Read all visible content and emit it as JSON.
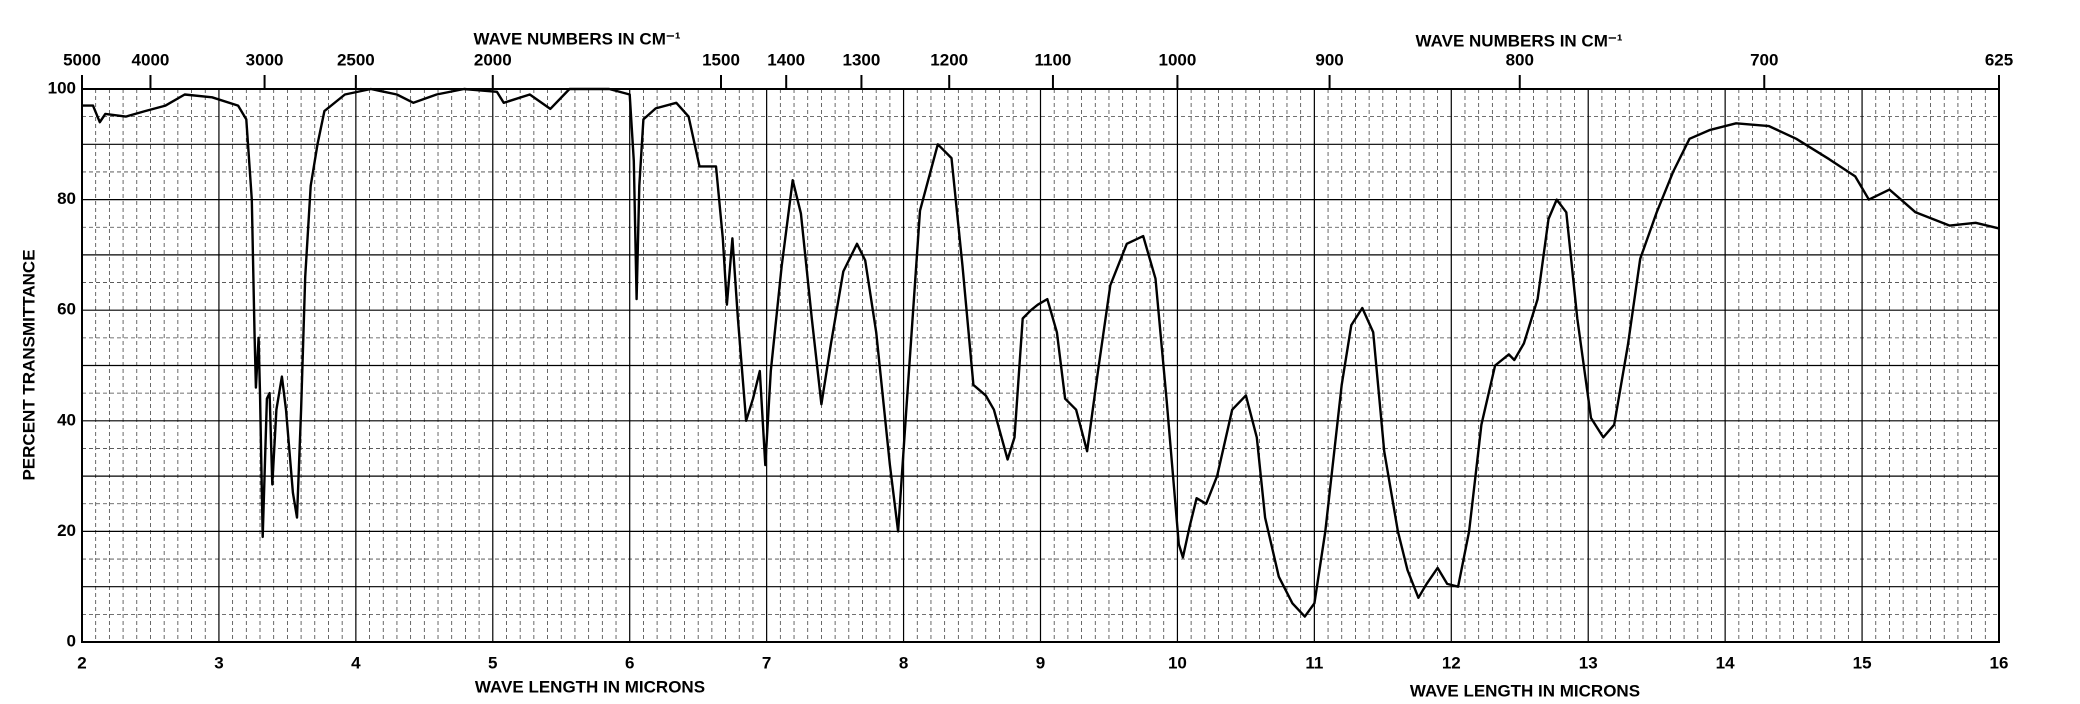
{
  "chart_data": {
    "type": "line",
    "x_labels": [
      "WAVE LENGTH IN MICRONS",
      "WAVE LENGTH IN MICRONS"
    ],
    "x2_labels": [
      "WAVE NUMBERS IN CM⁻¹",
      "WAVE NUMBERS IN CM⁻¹"
    ],
    "y_label": "PERCENT TRANSMITTANCE",
    "color": "#000000",
    "grid": true,
    "xlim": [
      2,
      16
    ],
    "xticks": [
      2,
      3,
      4,
      5,
      6,
      7,
      8,
      9,
      10,
      11,
      12,
      13,
      14,
      15,
      16
    ],
    "x2ticks": [
      5000,
      4000,
      3000,
      2500,
      2000,
      1500,
      1400,
      1300,
      1200,
      1100,
      1000,
      900,
      800,
      700,
      625
    ],
    "ylim": [
      0,
      100
    ],
    "yticks": [
      0,
      20,
      40,
      60,
      80,
      100
    ],
    "x": [
      2.0,
      2.08,
      2.13,
      2.17,
      2.32,
      2.46,
      2.61,
      2.75,
      2.95,
      3.14,
      3.2,
      3.24,
      3.26,
      3.27,
      3.29,
      3.3,
      3.32,
      3.35,
      3.37,
      3.39,
      3.42,
      3.46,
      3.49,
      3.54,
      3.57,
      3.6,
      3.63,
      3.67,
      3.72,
      3.77,
      3.92,
      4.11,
      4.3,
      4.42,
      4.59,
      4.79,
      5.03,
      5.08,
      5.27,
      5.42,
      5.56,
      5.85,
      6.0,
      6.03,
      6.05,
      6.07,
      6.1,
      6.19,
      6.34,
      6.43,
      6.51,
      6.63,
      6.68,
      6.71,
      6.75,
      6.79,
      6.85,
      6.9,
      6.95,
      6.99,
      7.03,
      7.11,
      7.19,
      7.25,
      7.33,
      7.4,
      7.47,
      7.56,
      7.66,
      7.72,
      7.8,
      7.9,
      7.96,
      8.02,
      8.12,
      8.25,
      8.35,
      8.43,
      8.51,
      8.6,
      8.66,
      8.76,
      8.81,
      8.87,
      8.93,
      8.98,
      9.05,
      9.12,
      9.18,
      9.26,
      9.34,
      9.42,
      9.51,
      9.63,
      9.75,
      9.84,
      9.92,
      10.01,
      10.04,
      10.09,
      10.14,
      10.21,
      10.29,
      10.4,
      10.5,
      10.58,
      10.64,
      10.74,
      10.84,
      10.93,
      11.0,
      11.08,
      11.2,
      11.27,
      11.35,
      11.43,
      11.51,
      11.61,
      11.68,
      11.76,
      11.82,
      11.9,
      11.97,
      12.05,
      12.13,
      12.22,
      12.32,
      12.42,
      12.46,
      12.53,
      12.63,
      12.71,
      12.77,
      12.84,
      12.92,
      13.02,
      13.11,
      13.19,
      13.29,
      13.38,
      13.5,
      13.62,
      13.74,
      13.89,
      14.08,
      14.32,
      14.52,
      14.76,
      14.95,
      15.05,
      15.2,
      15.39,
      15.64,
      15.83,
      16.0
    ],
    "values": [
      97,
      97,
      94,
      95.5,
      95,
      96,
      97,
      99,
      98.5,
      97,
      94.5,
      80,
      56,
      46,
      55,
      45,
      19,
      44,
      45,
      28.5,
      42,
      48,
      42,
      27,
      22.5,
      42,
      66,
      82.5,
      90,
      96,
      99,
      100,
      99,
      97.5,
      99,
      100,
      99.5,
      97.5,
      99,
      96.4,
      100,
      100,
      99,
      87,
      62,
      82.5,
      94.5,
      96.5,
      97.5,
      95,
      86,
      86,
      73,
      61,
      73,
      58.5,
      40,
      44,
      49,
      32,
      49,
      68,
      83.5,
      77.5,
      58.5,
      43,
      54,
      67,
      72,
      69,
      56,
      32,
      20,
      42,
      78,
      90,
      87.5,
      68,
      46.5,
      44.6,
      42,
      33,
      37,
      58.5,
      60,
      61,
      62,
      56,
      44,
      42,
      34.5,
      49,
      64.5,
      72,
      73.4,
      65.7,
      44,
      17.7,
      15.3,
      21,
      26,
      25,
      30,
      42,
      44.6,
      37,
      22.5,
      11.8,
      7,
      4.6,
      7,
      20,
      46.5,
      57.3,
      60.4,
      56,
      34.5,
      20,
      13,
      8,
      10.5,
      13.4,
      10.5,
      10,
      20,
      39.3,
      50,
      52,
      51,
      54,
      62,
      76.5,
      80,
      77.7,
      58.5,
      40.5,
      37,
      39.3,
      53.7,
      69.3,
      77.7,
      85,
      91,
      92.6,
      93.8,
      93.3,
      91,
      87.3,
      84.2,
      80,
      81.8,
      77.7,
      75.3,
      75.8,
      74.8
    ]
  }
}
